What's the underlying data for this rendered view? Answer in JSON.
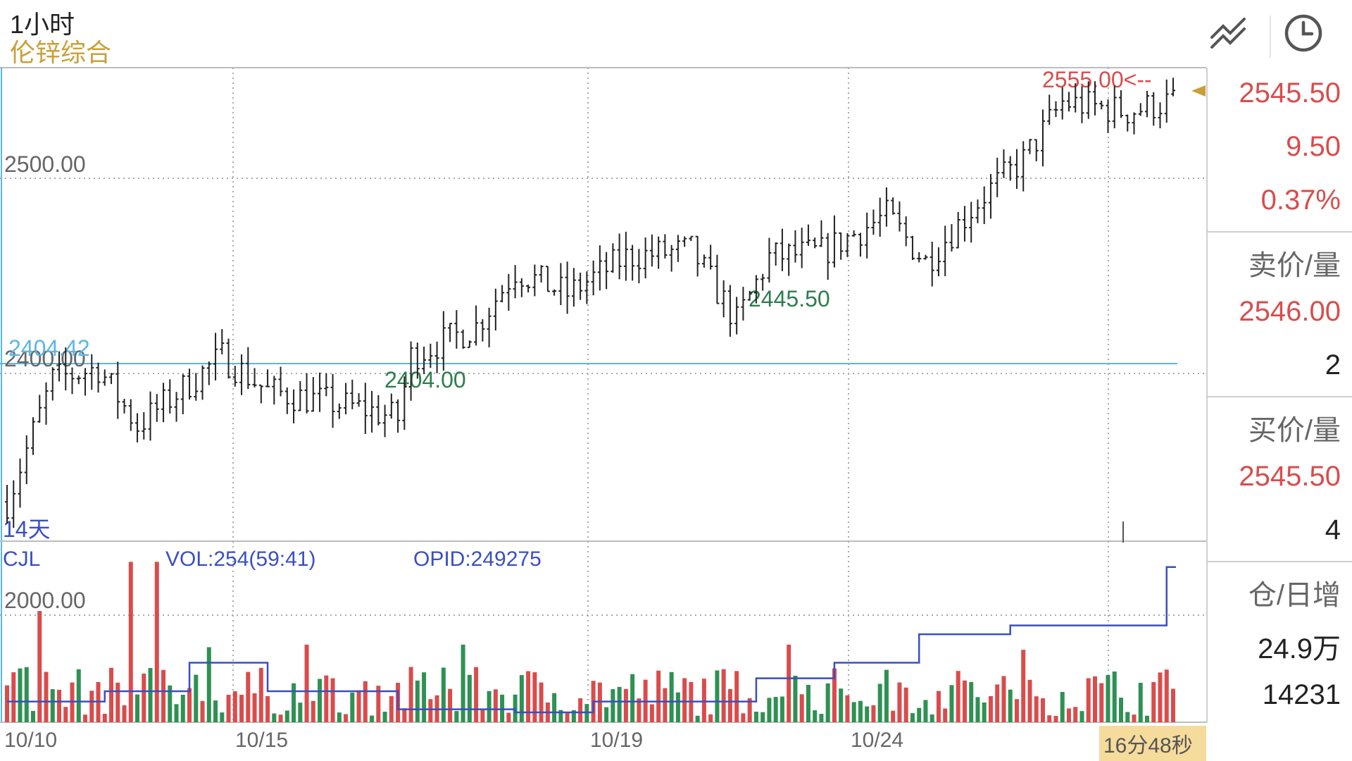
{
  "header": {
    "period": "1小时",
    "symbol": "伦锌综合"
  },
  "toolbar": {
    "draw_icon": "drawing-tool-icon",
    "clock_icon": "clock-icon"
  },
  "price_chart": {
    "y_labels": [
      "2500.00",
      "2400.00"
    ],
    "high_label": "2555.00<--",
    "low_label": "2404.00",
    "mid_low_label": "2445.50",
    "hline_value_label": "2404.42",
    "range_label": "14天"
  },
  "volume_chart": {
    "title": "CJL",
    "vol_label": "VOL:254(59:41)",
    "opid_label": "OPID:249275",
    "y_label": "2000.00"
  },
  "x_axis": {
    "dates": [
      "10/10",
      "10/15",
      "10/19",
      "10/24"
    ],
    "countdown": "16分48秒"
  },
  "side_panel": {
    "last_price": "2545.50",
    "change": "9.50",
    "change_pct": "0.37%",
    "ask_label": "卖价/量",
    "ask_price": "2546.00",
    "ask_volume": "2",
    "bid_label": "买价/量",
    "bid_price": "2545.50",
    "bid_volume": "4",
    "oi_label": "仓/日增",
    "open_interest": "24.9万",
    "daily_change": "14231"
  },
  "colors": {
    "up": "#d94c4c",
    "down": "#2e9153",
    "accent": "#c8a03a",
    "line": "#3a4fbf",
    "hline": "#5bb7e3"
  },
  "chart_data": {
    "type": "ohlc",
    "price_range": [
      2355,
      2560
    ],
    "milestones": [
      {
        "bar": 0,
        "price": 2372
      },
      {
        "bar": 7,
        "price": 2425
      },
      {
        "bar": 14,
        "price": 2430
      },
      {
        "bar": 20,
        "price": 2405
      },
      {
        "bar": 33,
        "price": 2435
      },
      {
        "bar": 40,
        "price": 2420
      },
      {
        "bar": 55,
        "price": 2412
      },
      {
        "bar": 60,
        "price": 2408
      },
      {
        "bar": 62,
        "price": 2435
      },
      {
        "bar": 72,
        "price": 2448
      },
      {
        "bar": 78,
        "price": 2472
      },
      {
        "bar": 86,
        "price": 2462
      },
      {
        "bar": 95,
        "price": 2478
      },
      {
        "bar": 105,
        "price": 2481
      },
      {
        "bar": 112,
        "price": 2450
      },
      {
        "bar": 117,
        "price": 2478
      },
      {
        "bar": 125,
        "price": 2480
      },
      {
        "bar": 135,
        "price": 2496
      },
      {
        "bar": 141,
        "price": 2476
      },
      {
        "bar": 150,
        "price": 2505
      },
      {
        "bar": 156,
        "price": 2520
      },
      {
        "bar": 162,
        "price": 2545
      },
      {
        "bar": 172,
        "price": 2541
      },
      {
        "bar": 178,
        "price": 2545
      }
    ],
    "volume_range": [
      0,
      3200
    ],
    "volume_peaks": [
      {
        "bar": 5,
        "value": 2150
      },
      {
        "bar": 19,
        "value": 3100
      },
      {
        "bar": 23,
        "value": 3100
      },
      {
        "bar": 31,
        "value": 1450
      },
      {
        "bar": 46,
        "value": 1500
      },
      {
        "bar": 70,
        "value": 1500
      },
      {
        "bar": 120,
        "value": 1500
      },
      {
        "bar": 156,
        "value": 1400
      }
    ],
    "opid_steps": [
      {
        "bar": 0,
        "value": 400
      },
      {
        "bar": 15,
        "value": 600
      },
      {
        "bar": 28,
        "value": 1150
      },
      {
        "bar": 40,
        "value": 600
      },
      {
        "bar": 60,
        "value": 250
      },
      {
        "bar": 78,
        "value": 190
      },
      {
        "bar": 90,
        "value": 400
      },
      {
        "bar": 115,
        "value": 850
      },
      {
        "bar": 127,
        "value": 1150
      },
      {
        "bar": 140,
        "value": 1700
      },
      {
        "bar": 154,
        "value": 1870
      },
      {
        "bar": 166,
        "value": 1870
      },
      {
        "bar": 178,
        "value": 3000
      }
    ]
  }
}
